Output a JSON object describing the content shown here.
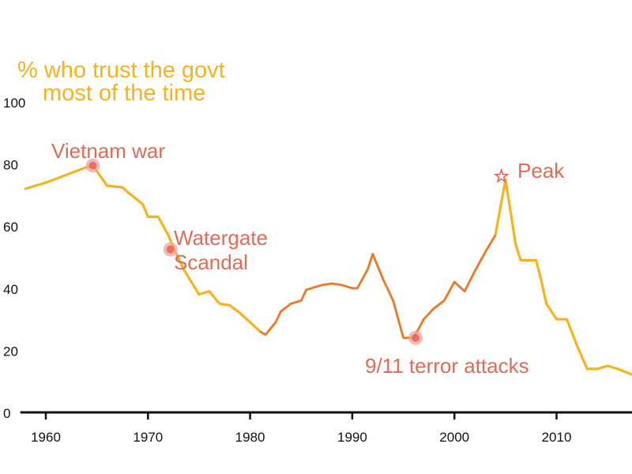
{
  "colors": {
    "line": "#f6b31f",
    "highlight": "#e5654e",
    "annotation": "#e06b57",
    "marker_fill": "#f2a3a0",
    "axis": "#111111"
  },
  "chart_data": {
    "type": "line",
    "title_lines": [
      "% who trust the govt",
      "most of the time"
    ],
    "ylim": [
      0,
      100
    ],
    "xlim": [
      1957.5,
      2017.5
    ],
    "xticks": [
      1960,
      1970,
      1980,
      1990,
      2000,
      2010
    ],
    "yticks": [
      0,
      20,
      40,
      60,
      80,
      100
    ],
    "grid": false,
    "series": [
      {
        "x": [
          1958,
          1960,
          1962,
          1964,
          1964.6,
          1966,
          1967.5,
          1968,
          1969.5,
          1970,
          1971,
          1972,
          1972.5,
          1973.5,
          1975,
          1976,
          1977,
          1978,
          1979,
          1980,
          1981,
          1981.5,
          1982.5,
          1983,
          1984,
          1985,
          1985.5,
          1986,
          1987,
          1988,
          1989,
          1990,
          1990.5,
          1991.5,
          1992,
          1993,
          1994,
          1995,
          1996,
          1997,
          1998,
          1999,
          2000,
          2001,
          2002,
          2003,
          2004,
          2005,
          2006,
          2006.5,
          2008,
          2008.5,
          2009,
          2010,
          2011,
          2012,
          2013,
          2014,
          2015,
          2016,
          2017.5
        ],
        "y": [
          72,
          74,
          76.5,
          79,
          79.5,
          73,
          72.5,
          71,
          67,
          63,
          63,
          57,
          53,
          46,
          38,
          39,
          35,
          34.5,
          32,
          29,
          26,
          25,
          29,
          32.5,
          35,
          36,
          39.5,
          40,
          41,
          41.5,
          41,
          40,
          40,
          46,
          51,
          43,
          36,
          24,
          24,
          30,
          33.5,
          36,
          42,
          39,
          45.5,
          51.5,
          57,
          75,
          54,
          49,
          49,
          42.5,
          35,
          30,
          30,
          21.5,
          14,
          14,
          15,
          14,
          12
        ]
      }
    ],
    "highlight_range": [
      1980.8,
      2004.7
    ],
    "annotations": [
      {
        "label_lines": [
          "Vietnam war"
        ],
        "x": 1964.6,
        "y": 79.5,
        "marker": "dot"
      },
      {
        "label_lines": [
          "Watergate",
          "Scandal"
        ],
        "x": 1972.2,
        "y": 52.5,
        "marker": "dot"
      },
      {
        "label_lines": [
          "9/11 terror attacks"
        ],
        "x": 1996.2,
        "y": 24,
        "marker": "dot"
      },
      {
        "label_lines": [
          "Peak"
        ],
        "x": 2004.6,
        "y": 76,
        "marker": "star"
      }
    ]
  }
}
